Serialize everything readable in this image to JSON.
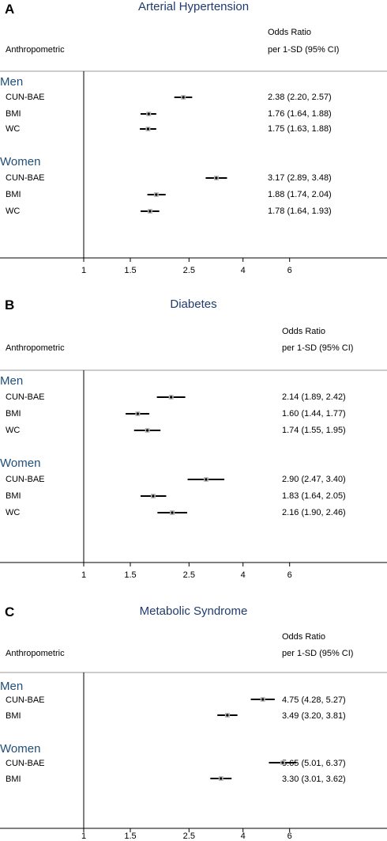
{
  "chart_data": [
    {
      "type": "forest",
      "letter": "A",
      "title": "Arterial Hypertension",
      "col_header_left": "Anthropometric",
      "col_header_right_1": "Odds Ratio",
      "col_header_right_2": "per 1-SD (95% CI)",
      "x_ticks": [
        "1",
        "1.5",
        "2.5",
        "4",
        "6"
      ],
      "x_tick_values": [
        1,
        1.5,
        2.5,
        4,
        6
      ],
      "x_scale": "log",
      "groups": [
        {
          "name": "Men",
          "rows": [
            {
              "label": "CUN-BAE",
              "or": 2.38,
              "lo": 2.2,
              "hi": 2.57,
              "text": "2.38 (2.20, 2.57)"
            },
            {
              "label": "BMI",
              "or": 1.76,
              "lo": 1.64,
              "hi": 1.88,
              "text": "1.76 (1.64, 1.88)"
            },
            {
              "label": "WC",
              "or": 1.75,
              "lo": 1.63,
              "hi": 1.88,
              "text": "1.75 (1.63, 1.88)"
            }
          ]
        },
        {
          "name": "Women",
          "rows": [
            {
              "label": "CUN-BAE",
              "or": 3.17,
              "lo": 2.89,
              "hi": 3.48,
              "text": "3.17 (2.89, 3.48)"
            },
            {
              "label": "BMI",
              "or": 1.88,
              "lo": 1.74,
              "hi": 2.04,
              "text": "1.88 (1.74, 2.04)"
            },
            {
              "label": "WC",
              "or": 1.78,
              "lo": 1.64,
              "hi": 1.93,
              "text": "1.78 (1.64, 1.93)"
            }
          ]
        }
      ]
    },
    {
      "type": "forest",
      "letter": "B",
      "title": "Diabetes",
      "col_header_left": "Anthropometric",
      "col_header_right_1": "Odds Ratio",
      "col_header_right_2": "per 1-SD (95% CI)",
      "x_ticks": [
        "1",
        "1.5",
        "2.5",
        "4",
        "6"
      ],
      "x_tick_values": [
        1,
        1.5,
        2.5,
        4,
        6
      ],
      "x_scale": "log",
      "groups": [
        {
          "name": "Men",
          "rows": [
            {
              "label": "CUN-BAE",
              "or": 2.14,
              "lo": 1.89,
              "hi": 2.42,
              "text": "2.14 (1.89, 2.42)"
            },
            {
              "label": "BMI",
              "or": 1.6,
              "lo": 1.44,
              "hi": 1.77,
              "text": "1.60 (1.44, 1.77)"
            },
            {
              "label": "WC",
              "or": 1.74,
              "lo": 1.55,
              "hi": 1.95,
              "text": "1.74 (1.55, 1.95)"
            }
          ]
        },
        {
          "name": "Women",
          "rows": [
            {
              "label": "CUN-BAE",
              "or": 2.9,
              "lo": 2.47,
              "hi": 3.4,
              "text": "2.90 (2.47, 3.40)"
            },
            {
              "label": "BMI",
              "or": 1.83,
              "lo": 1.64,
              "hi": 2.05,
              "text": "1.83 (1.64, 2.05)"
            },
            {
              "label": "WC",
              "or": 2.16,
              "lo": 1.9,
              "hi": 2.46,
              "text": "2.16 (1.90, 2.46)"
            }
          ]
        }
      ]
    },
    {
      "type": "forest",
      "letter": "C",
      "title": "Metabolic Syndrome",
      "col_header_left": "Anthropometric",
      "col_header_right_1": "Odds Ratio",
      "col_header_right_2": "per 1-SD (95% CI)",
      "x_ticks": [
        "1",
        "1.5",
        "2.5",
        "4",
        "6"
      ],
      "x_tick_values": [
        1,
        1.5,
        2.5,
        4,
        6
      ],
      "x_scale": "log",
      "groups": [
        {
          "name": "Men",
          "rows": [
            {
              "label": "CUN-BAE",
              "or": 4.75,
              "lo": 4.28,
              "hi": 5.27,
              "text": "4.75 (4.28, 5.27)"
            },
            {
              "label": "BMI",
              "or": 3.49,
              "lo": 3.2,
              "hi": 3.81,
              "text": "3.49 (3.20, 3.81)"
            }
          ]
        },
        {
          "name": "Women",
          "rows": [
            {
              "label": "CUN-BAE",
              "or": 5.65,
              "lo": 5.01,
              "hi": 6.37,
              "text": "5.65 (5.01, 6.37)"
            },
            {
              "label": "BMI",
              "or": 3.3,
              "lo": 3.01,
              "hi": 3.62,
              "text": "3.30 (3.01, 3.62)"
            }
          ]
        }
      ]
    }
  ]
}
